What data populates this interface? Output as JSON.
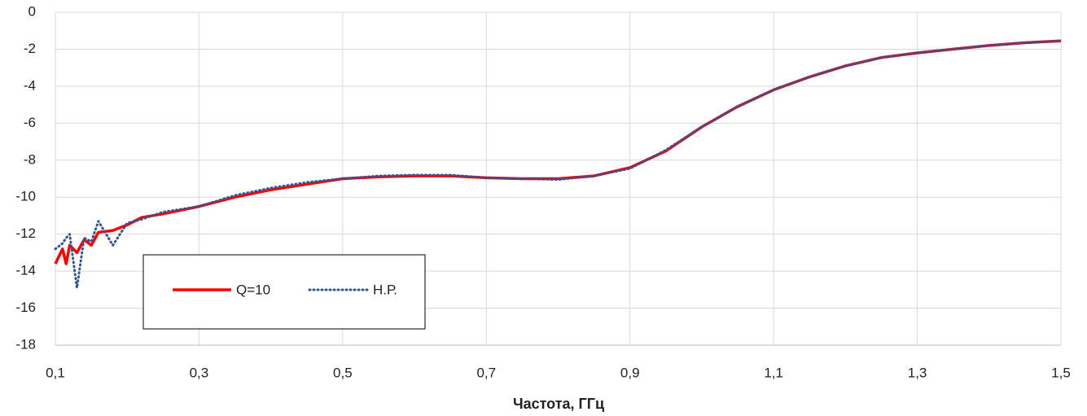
{
  "chart_data": {
    "type": "line",
    "xlabel": "Частота, ГГц",
    "x": [
      0.1,
      0.11,
      0.115,
      0.12,
      0.13,
      0.14,
      0.15,
      0.16,
      0.18,
      0.2,
      0.22,
      0.25,
      0.3,
      0.35,
      0.4,
      0.45,
      0.5,
      0.55,
      0.6,
      0.65,
      0.7,
      0.75,
      0.8,
      0.85,
      0.9,
      0.95,
      1.0,
      1.05,
      1.1,
      1.15,
      1.2,
      1.25,
      1.3,
      1.35,
      1.4,
      1.45,
      1.5
    ],
    "series": [
      {
        "name": "Q=10",
        "color": "#ff0000",
        "values": [
          -13.6,
          -12.8,
          -13.6,
          -12.6,
          -13.0,
          -12.3,
          -12.6,
          -11.9,
          -11.8,
          -11.5,
          -11.1,
          -10.9,
          -10.5,
          -10.0,
          -9.6,
          -9.3,
          -9.0,
          -8.9,
          -8.85,
          -8.85,
          -8.95,
          -9.0,
          -9.0,
          -8.85,
          -8.4,
          -7.5,
          -6.2,
          -5.1,
          -4.2,
          -3.5,
          -2.9,
          -2.45,
          -2.2,
          -2.0,
          -1.8,
          -1.65,
          -1.55
        ]
      },
      {
        "name": "Н.Р.",
        "color": "#2f5597",
        "values": [
          -12.8,
          -12.5,
          -12.2,
          -12.0,
          -14.9,
          -12.2,
          -12.4,
          -11.3,
          -12.6,
          -11.4,
          -11.2,
          -10.8,
          -10.5,
          -9.9,
          -9.5,
          -9.2,
          -9.0,
          -8.85,
          -8.8,
          -8.8,
          -8.95,
          -9.0,
          -9.05,
          -8.85,
          -8.45,
          -7.45,
          -6.2,
          -5.1,
          -4.2,
          -3.5,
          -2.9,
          -2.45,
          -2.2,
          -2.0,
          -1.8,
          -1.65,
          -1.55
        ]
      }
    ],
    "xlim": [
      0.1,
      1.5
    ],
    "xticks": [
      {
        "value": 0.1,
        "label": "0,1"
      },
      {
        "value": 0.3,
        "label": "0,3"
      },
      {
        "value": 0.5,
        "label": "0,5"
      },
      {
        "value": 0.7,
        "label": "0,7"
      },
      {
        "value": 0.9,
        "label": "0,9"
      },
      {
        "value": 1.1,
        "label": "1,1"
      },
      {
        "value": 1.3,
        "label": "1,3"
      },
      {
        "value": 1.5,
        "label": "1,5"
      }
    ],
    "ylim": [
      -18,
      0
    ],
    "yticks": [
      0,
      -2,
      -4,
      -6,
      -8,
      -10,
      -12,
      -14,
      -16,
      -18
    ],
    "grid": true
  }
}
